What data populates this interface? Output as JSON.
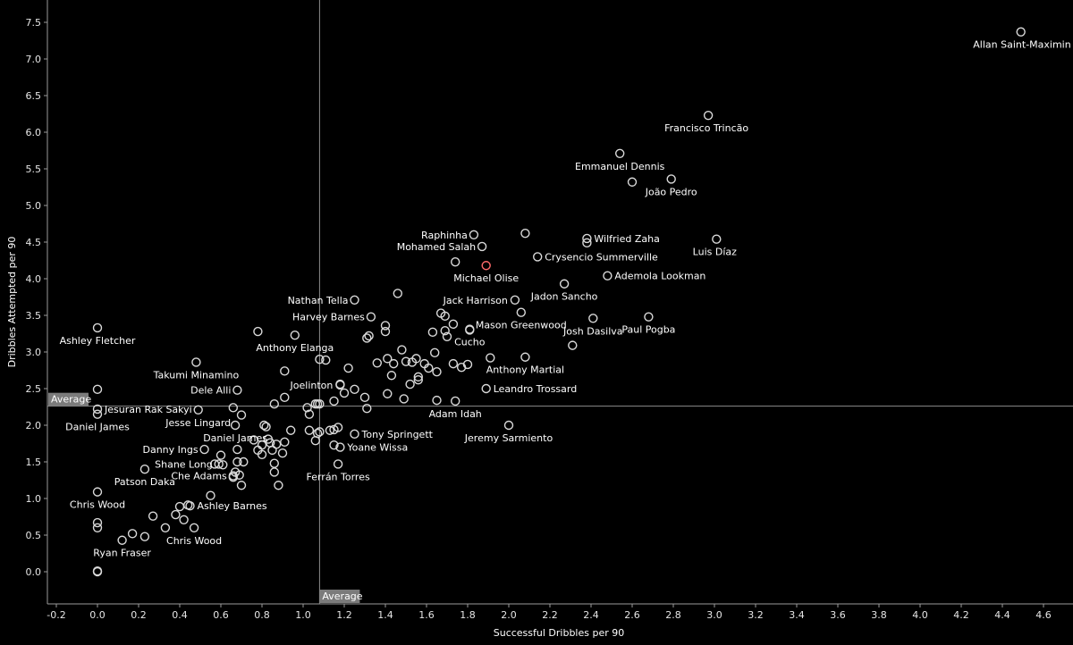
{
  "chart_data": {
    "type": "scatter",
    "xlabel": "Successful Dribbles per 90",
    "ylabel": "Dribbles Attempted per 90",
    "xlim": [
      -0.2,
      4.8
    ],
    "ylim": [
      -0.2,
      7.8
    ],
    "x_ticks": [
      "-0.2",
      "0.0",
      "0.2",
      "0.4",
      "0.6",
      "0.8",
      "1.0",
      "1.2",
      "1.4",
      "1.6",
      "1.8",
      "2.0",
      "2.2",
      "2.4",
      "2.6",
      "2.8",
      "3.0",
      "3.2",
      "3.4",
      "3.6",
      "3.8",
      "4.0",
      "4.2",
      "4.4",
      "4.6"
    ],
    "y_ticks": [
      "0.0",
      "0.5",
      "1.0",
      "1.5",
      "2.0",
      "2.5",
      "3.0",
      "3.5",
      "4.0",
      "4.5",
      "5.0",
      "5.5",
      "6.0",
      "6.5",
      "7.0",
      "7.5"
    ],
    "reference_lines": [
      {
        "axis": "x",
        "value": 1.08,
        "label": "Average"
      },
      {
        "axis": "y",
        "value": 2.26,
        "label": "Average"
      }
    ],
    "highlight_color": "#ff6b6b",
    "point_color": "#d9d9d9",
    "labeled_points": [
      {
        "name": "Allan Saint-Maximin",
        "x": 4.49,
        "y": 7.37
      },
      {
        "name": "Francisco Trincão",
        "x": 2.97,
        "y": 6.23
      },
      {
        "name": "Emmanuel Dennis",
        "x": 2.54,
        "y": 5.71
      },
      {
        "name": "João Pedro",
        "x": 2.79,
        "y": 5.36
      },
      {
        "name": "Wilfried Zaha",
        "x": 2.38,
        "y": 4.55
      },
      {
        "name": "Luis Díaz",
        "x": 3.01,
        "y": 4.54
      },
      {
        "name": "Raphinha",
        "x": 1.83,
        "y": 4.6
      },
      {
        "name": "Mohamed Salah",
        "x": 1.87,
        "y": 4.44
      },
      {
        "name": "Crysencio Summerville",
        "x": 2.14,
        "y": 4.3
      },
      {
        "name": "Michael Olise",
        "x": 1.89,
        "y": 4.18,
        "highlight": true
      },
      {
        "name": "Ademola Lookman",
        "x": 2.48,
        "y": 4.04
      },
      {
        "name": "Jadon Sancho",
        "x": 2.27,
        "y": 3.93
      },
      {
        "name": "Nathan Tella",
        "x": 1.25,
        "y": 3.71
      },
      {
        "name": "Jack Harrison",
        "x": 2.03,
        "y": 3.71
      },
      {
        "name": "Harvey Barnes",
        "x": 1.33,
        "y": 3.48
      },
      {
        "name": "Mason Greenwood",
        "x": 2.06,
        "y": 3.54
      },
      {
        "name": "Josh Dasilva",
        "x": 2.41,
        "y": 3.46
      },
      {
        "name": "Paul Pogba",
        "x": 2.68,
        "y": 3.48
      },
      {
        "name": "Ashley Fletcher",
        "x": 0.0,
        "y": 3.33
      },
      {
        "name": "Cucho",
        "x": 1.81,
        "y": 3.31
      },
      {
        "name": "Anthony Elanga",
        "x": 0.96,
        "y": 3.23
      },
      {
        "name": "Anthony Martial",
        "x": 2.08,
        "y": 2.93
      },
      {
        "name": "Takumi Minamino",
        "x": 0.48,
        "y": 2.86
      },
      {
        "name": "Leandro Trossard",
        "x": 1.89,
        "y": 2.5
      },
      {
        "name": "Dele Alli",
        "x": 0.68,
        "y": 2.48
      },
      {
        "name": "Joelinton",
        "x": 1.18,
        "y": 2.55
      },
      {
        "name": "Jesuran Rak Sakyi",
        "x": 0.0,
        "y": 2.22
      },
      {
        "name": "Adam Idah",
        "x": 1.74,
        "y": 2.33
      },
      {
        "name": "Jesse Lingard",
        "x": 0.49,
        "y": 2.21
      },
      {
        "name": "Daniel James",
        "x": 0.0,
        "y": 2.15
      },
      {
        "name": "Jeremy Sarmiento",
        "x": 2.0,
        "y": 2.0
      },
      {
        "name": "Tony Springett",
        "x": 1.25,
        "y": 1.88
      },
      {
        "name": "Daniel James",
        "x": 0.67,
        "y": 2.0
      },
      {
        "name": "Yoane Wissa",
        "x": 1.18,
        "y": 1.7
      },
      {
        "name": "Danny Ings",
        "x": 0.52,
        "y": 1.67
      },
      {
        "name": "Shane Long",
        "x": 0.59,
        "y": 1.47
      },
      {
        "name": "Che Adams",
        "x": 0.66,
        "y": 1.31
      },
      {
        "name": "Ferrán Torres",
        "x": 1.17,
        "y": 1.47
      },
      {
        "name": "Patson Daka",
        "x": 0.23,
        "y": 1.4
      },
      {
        "name": "Chris Wood",
        "x": 0.0,
        "y": 1.09
      },
      {
        "name": "Ashley Barnes",
        "x": 0.45,
        "y": 0.9
      },
      {
        "name": "Chris Wood",
        "x": 0.47,
        "y": 0.6
      },
      {
        "name": "Ryan Fraser",
        "x": 0.12,
        "y": 0.43
      }
    ],
    "unlabeled_points": [
      [
        0.0,
        0.0
      ],
      [
        0.0,
        0.01
      ],
      [
        0.0,
        0.6
      ],
      [
        0.0,
        0.67
      ],
      [
        0.0,
        2.49
      ],
      [
        0.17,
        0.52
      ],
      [
        0.23,
        0.48
      ],
      [
        0.27,
        0.76
      ],
      [
        0.33,
        0.6
      ],
      [
        0.38,
        0.78
      ],
      [
        0.4,
        0.89
      ],
      [
        0.42,
        0.71
      ],
      [
        0.44,
        0.91
      ],
      [
        0.55,
        1.04
      ],
      [
        0.57,
        1.47
      ],
      [
        0.6,
        1.59
      ],
      [
        0.61,
        1.46
      ],
      [
        0.66,
        1.29
      ],
      [
        0.67,
        1.36
      ],
      [
        0.68,
        1.67
      ],
      [
        0.68,
        1.5
      ],
      [
        0.69,
        1.32
      ],
      [
        0.7,
        1.18
      ],
      [
        0.71,
        1.5
      ],
      [
        0.7,
        2.14
      ],
      [
        0.66,
        2.24
      ],
      [
        0.76,
        1.8
      ],
      [
        0.78,
        1.66
      ],
      [
        0.8,
        1.6
      ],
      [
        0.8,
        1.73
      ],
      [
        0.81,
        2.0
      ],
      [
        0.82,
        1.98
      ],
      [
        0.83,
        1.81
      ],
      [
        0.84,
        1.76
      ],
      [
        0.85,
        1.66
      ],
      [
        0.86,
        1.48
      ],
      [
        0.86,
        1.36
      ],
      [
        0.86,
        2.29
      ],
      [
        0.87,
        1.74
      ],
      [
        0.88,
        1.18
      ],
      [
        0.9,
        1.62
      ],
      [
        0.91,
        1.77
      ],
      [
        0.91,
        2.38
      ],
      [
        0.94,
        1.93
      ],
      [
        0.78,
        3.28
      ],
      [
        0.91,
        2.74
      ],
      [
        1.02,
        2.24
      ],
      [
        1.03,
        1.93
      ],
      [
        1.03,
        2.15
      ],
      [
        1.06,
        1.79
      ],
      [
        1.06,
        2.29
      ],
      [
        1.07,
        2.29
      ],
      [
        1.07,
        1.89
      ],
      [
        1.08,
        1.91
      ],
      [
        1.08,
        2.29
      ],
      [
        1.08,
        2.9
      ],
      [
        1.11,
        2.89
      ],
      [
        1.13,
        1.93
      ],
      [
        1.15,
        1.73
      ],
      [
        1.15,
        1.94
      ],
      [
        1.15,
        2.33
      ],
      [
        1.17,
        1.97
      ],
      [
        1.18,
        2.56
      ],
      [
        1.2,
        2.44
      ],
      [
        1.22,
        2.78
      ],
      [
        1.25,
        2.49
      ],
      [
        1.3,
        2.38
      ],
      [
        1.31,
        2.23
      ],
      [
        1.31,
        3.19
      ],
      [
        1.32,
        3.22
      ],
      [
        1.36,
        2.85
      ],
      [
        1.4,
        3.28
      ],
      [
        1.4,
        3.36
      ],
      [
        1.41,
        2.43
      ],
      [
        1.41,
        2.91
      ],
      [
        1.43,
        2.68
      ],
      [
        1.44,
        2.84
      ],
      [
        1.46,
        3.8
      ],
      [
        1.48,
        3.03
      ],
      [
        1.49,
        2.36
      ],
      [
        1.5,
        2.87
      ],
      [
        1.52,
        2.56
      ],
      [
        1.53,
        2.86
      ],
      [
        1.55,
        2.91
      ],
      [
        1.56,
        2.62
      ],
      [
        1.56,
        2.66
      ],
      [
        1.59,
        2.84
      ],
      [
        1.61,
        2.78
      ],
      [
        1.63,
        3.27
      ],
      [
        1.64,
        2.99
      ],
      [
        1.65,
        2.73
      ],
      [
        1.65,
        2.34
      ],
      [
        1.67,
        3.53
      ],
      [
        1.69,
        3.49
      ],
      [
        1.69,
        3.29
      ],
      [
        1.7,
        3.21
      ],
      [
        1.73,
        3.38
      ],
      [
        1.73,
        2.84
      ],
      [
        1.74,
        4.23
      ],
      [
        1.77,
        2.79
      ],
      [
        1.8,
        2.83
      ],
      [
        1.81,
        3.3
      ],
      [
        1.91,
        2.92
      ],
      [
        2.08,
        4.62
      ],
      [
        2.31,
        3.09
      ],
      [
        2.38,
        4.49
      ],
      [
        2.6,
        5.32
      ]
    ]
  }
}
